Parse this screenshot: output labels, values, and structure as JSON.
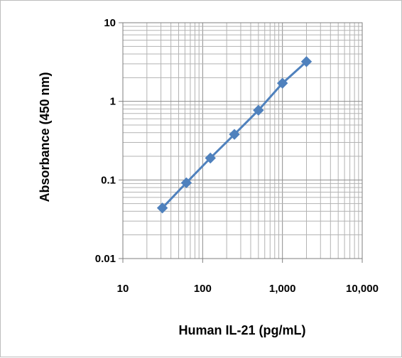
{
  "chart_data": {
    "type": "line",
    "xlabel": "Human IL-21 (pg/mL)",
    "ylabel": "Absorbance (450 nm)",
    "xscale": "log",
    "yscale": "log",
    "xlim": [
      10,
      10000
    ],
    "ylim": [
      0.01,
      10
    ],
    "grid": true,
    "legend": "none",
    "x_tick_labels": [
      "10",
      "100",
      "1,000",
      "10,000"
    ],
    "y_tick_labels": [
      "0.01",
      "0.1",
      "1",
      "10"
    ],
    "series": [
      {
        "color": "#4f81bd",
        "marker": "diamond",
        "x": [
          31.25,
          62.5,
          125,
          250,
          500,
          1000,
          2000
        ],
        "y": [
          0.044,
          0.092,
          0.19,
          0.38,
          0.77,
          1.7,
          3.2
        ]
      }
    ]
  }
}
